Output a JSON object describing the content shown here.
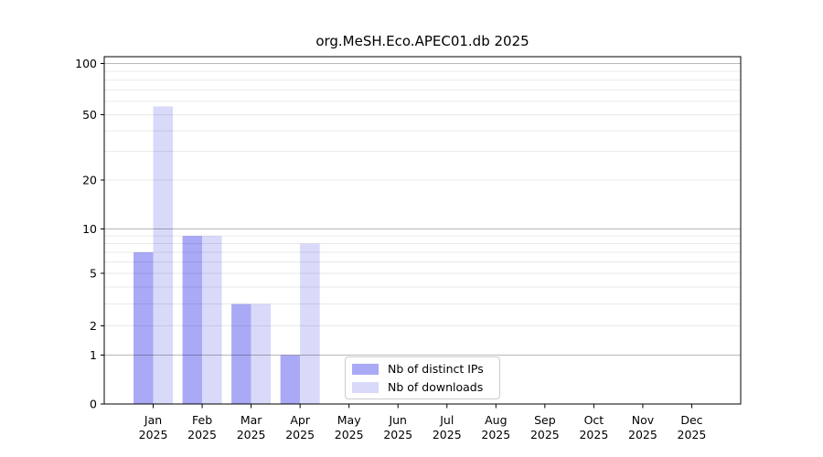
{
  "chart_data": {
    "type": "bar",
    "title": "org.MeSH.Eco.APEC01.db 2025",
    "categories": [
      "Jan",
      "Feb",
      "Mar",
      "Apr",
      "May",
      "Jun",
      "Jul",
      "Aug",
      "Sep",
      "Oct",
      "Nov",
      "Dec"
    ],
    "x_tick_second_line": "2025",
    "series": [
      {
        "name": "Nb of distinct IPs",
        "color": "#a9a9f6",
        "values": [
          7,
          9,
          3,
          1,
          0,
          0,
          0,
          0,
          0,
          0,
          0,
          0
        ]
      },
      {
        "name": "Nb of downloads",
        "color": "#d9d9fa",
        "values": [
          56,
          9,
          3,
          8,
          0,
          0,
          0,
          0,
          0,
          0,
          0,
          0
        ]
      }
    ],
    "y_axis": {
      "scale": "log1p",
      "ylim": [
        0,
        110
      ],
      "ticks": [
        0,
        1,
        2,
        5,
        10,
        20,
        50,
        100
      ],
      "major_gridlines": [
        1,
        10,
        100
      ],
      "minor_gridlines": [
        2,
        3,
        4,
        5,
        6,
        7,
        8,
        9,
        20,
        30,
        40,
        50,
        60,
        70,
        80,
        90
      ]
    },
    "xlabel": "",
    "ylabel": "",
    "legend": {
      "position": "bottom-center-inside"
    },
    "colors": {
      "major_grid": "rgba(0,0,0,0.28)",
      "minor_grid": "rgba(0,0,0,0.085)",
      "axis": "#000000",
      "background": "#ffffff"
    }
  }
}
